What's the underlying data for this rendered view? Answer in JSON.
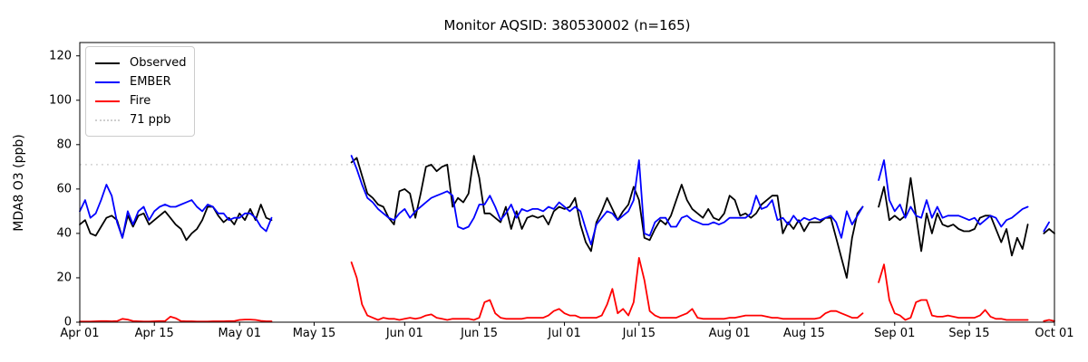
{
  "chart_data": {
    "type": "line",
    "title": "Monitor AQSID: 380530002 (n=165)",
    "ylabel": "MDA8 O3 (ppb)",
    "ylim": [
      0,
      126
    ],
    "yticks": [
      0,
      20,
      40,
      60,
      80,
      100,
      120
    ],
    "x_axis": {
      "range": [
        0,
        183
      ],
      "tick_days": [
        0,
        14,
        30,
        44,
        61,
        75,
        91,
        105,
        122,
        136,
        153,
        167,
        183
      ],
      "tick_labels": [
        "Apr 01",
        "Apr 15",
        "May 01",
        "May 15",
        "Jun 01",
        "Jun 15",
        "Jul 01",
        "Jul 15",
        "Aug 01",
        "Aug 15",
        "Sep 01",
        "Sep 15",
        "Oct 01"
      ]
    },
    "threshold_line": {
      "label": "71 ppb",
      "value": 71,
      "color": "#cfcfcf",
      "line_style": "dotted"
    },
    "legend": {
      "position": "upper-left",
      "entries": [
        "Observed",
        "EMBER",
        "Fire",
        "71 ppb"
      ]
    },
    "series": [
      {
        "name": "Observed",
        "color": "#000000",
        "segments": [
          {
            "start_day": 0,
            "values": [
              44,
              46,
              40,
              39,
              43,
              47,
              48,
              46,
              38,
              48,
              43,
              48,
              49,
              44,
              46,
              48,
              50,
              47,
              44,
              42,
              37,
              40,
              42,
              46,
              52,
              52,
              48,
              45,
              47,
              44,
              49,
              46,
              51,
              46,
              53,
              47,
              46
            ]
          },
          {
            "start_day": 51,
            "values": [
              72,
              74,
              66,
              58,
              56,
              53,
              52,
              47,
              44,
              59,
              60,
              58,
              47,
              58,
              70,
              71,
              68,
              70,
              71,
              52,
              56,
              54,
              58,
              75,
              65,
              49,
              49,
              47,
              45,
              52,
              42,
              50,
              42,
              47,
              48,
              47,
              48,
              44,
              50,
              52,
              51,
              52,
              56,
              44,
              36,
              32,
              45,
              50,
              56,
              51,
              46,
              50,
              53,
              61,
              55,
              38,
              37,
              42,
              46,
              44,
              48,
              55,
              62,
              55,
              51,
              49,
              47,
              51,
              47,
              46,
              49,
              57,
              55,
              48,
              49,
              47,
              49,
              53,
              55,
              57,
              57,
              40,
              45,
              42,
              46,
              41,
              45,
              45,
              45,
              47,
              47,
              38,
              29,
              20,
              38,
              49,
              52
            ]
          },
          {
            "start_day": 150,
            "values": [
              52,
              61,
              46,
              48,
              46,
              48,
              65,
              48,
              32,
              49,
              40,
              49,
              44,
              43,
              44,
              42,
              41,
              41,
              42,
              47,
              48,
              48,
              42,
              36,
              42,
              30,
              38,
              33,
              44
            ]
          },
          {
            "start_day": 181,
            "values": [
              40,
              42,
              40
            ]
          }
        ]
      },
      {
        "name": "EMBER",
        "color": "#0000ff",
        "segments": [
          {
            "start_day": 0,
            "values": [
              50,
              55,
              47,
              49,
              55,
              62,
              57,
              45,
              38,
              50,
              44,
              50,
              52,
              46,
              50,
              52,
              53,
              52,
              52,
              53,
              54,
              55,
              52,
              50,
              53,
              52,
              49,
              49,
              46,
              47,
              47,
              49,
              49,
              47,
              43,
              41,
              47
            ]
          },
          {
            "start_day": 51,
            "values": [
              75,
              69,
              62,
              56,
              54,
              51,
              49,
              47,
              46,
              49,
              51,
              47,
              50,
              52,
              54,
              56,
              57,
              58,
              59,
              57,
              43,
              42,
              43,
              47,
              53,
              53,
              57,
              52,
              46,
              49,
              53,
              47,
              51,
              50,
              51,
              51,
              50,
              52,
              51,
              54,
              52,
              50,
              52,
              50,
              42,
              35,
              44,
              47,
              50,
              49,
              46,
              48,
              50,
              55,
              73,
              40,
              39,
              45,
              47,
              47,
              43,
              43,
              47,
              48,
              46,
              45,
              44,
              44,
              45,
              44,
              45,
              47,
              47,
              47,
              47,
              49,
              57,
              51,
              52,
              55,
              46,
              47,
              44,
              48,
              45,
              47,
              46,
              47,
              46,
              47,
              48,
              45,
              38,
              50,
              44,
              48,
              52
            ]
          },
          {
            "start_day": 150,
            "values": [
              64,
              73,
              55,
              50,
              53,
              47,
              52,
              48,
              47,
              55,
              47,
              52,
              47,
              48,
              48,
              48,
              47,
              46,
              47,
              44,
              46,
              48,
              47,
              43,
              46,
              47,
              49,
              51,
              52
            ]
          },
          {
            "start_day": 181,
            "values": [
              41,
              45
            ]
          }
        ]
      },
      {
        "name": "Fire",
        "color": "#ff0000",
        "segments": [
          {
            "start_day": 0,
            "values": [
              0.3,
              0.3,
              0.3,
              0.4,
              0.5,
              0.5,
              0.4,
              0.5,
              1.5,
              1.2,
              0.5,
              0.4,
              0.3,
              0.3,
              0.4,
              0.5,
              0.5,
              2.5,
              1.8,
              0.5,
              0.4,
              0.4,
              0.3,
              0.3,
              0.3,
              0.4,
              0.4,
              0.4,
              0.5,
              0.5,
              1.0,
              1.2,
              1.2,
              1.0,
              0.6,
              0.4,
              0.4
            ]
          },
          {
            "start_day": 51,
            "values": [
              27,
              20,
              8,
              3,
              2,
              1,
              2,
              1.5,
              1.5,
              1,
              1.5,
              2,
              1.5,
              2,
              3,
              3.5,
              2,
              1.5,
              1,
              1.5,
              1.5,
              1.5,
              1.5,
              1,
              2,
              9,
              10,
              4,
              2,
              1.5,
              1.5,
              1.5,
              1.5,
              2,
              2,
              2,
              2,
              3,
              5,
              6,
              4,
              3,
              3,
              2,
              2,
              2,
              2,
              3,
              8,
              15,
              4,
              6,
              3,
              9,
              29,
              19,
              5,
              3,
              2,
              2,
              2,
              2,
              3,
              4,
              6,
              2,
              1.5,
              1.5,
              1.5,
              1.5,
              1.5,
              2,
              2,
              2.5,
              3,
              3,
              3,
              3,
              2.5,
              2,
              2,
              1.5,
              1.5,
              1.5,
              1.5,
              1.5,
              1.5,
              1.5,
              2,
              4,
              5,
              5,
              4,
              3,
              2,
              2,
              4
            ]
          },
          {
            "start_day": 150,
            "values": [
              18,
              26,
              10,
              4,
              3,
              1,
              2,
              9,
              10,
              10,
              3,
              2.5,
              2.5,
              3,
              2.5,
              2,
              2,
              2,
              2,
              3,
              5.5,
              2.5,
              1.5,
              1.5,
              1,
              1,
              1,
              1,
              1
            ]
          },
          {
            "start_day": 181,
            "values": [
              0.5,
              1,
              0.5
            ]
          }
        ]
      }
    ]
  }
}
